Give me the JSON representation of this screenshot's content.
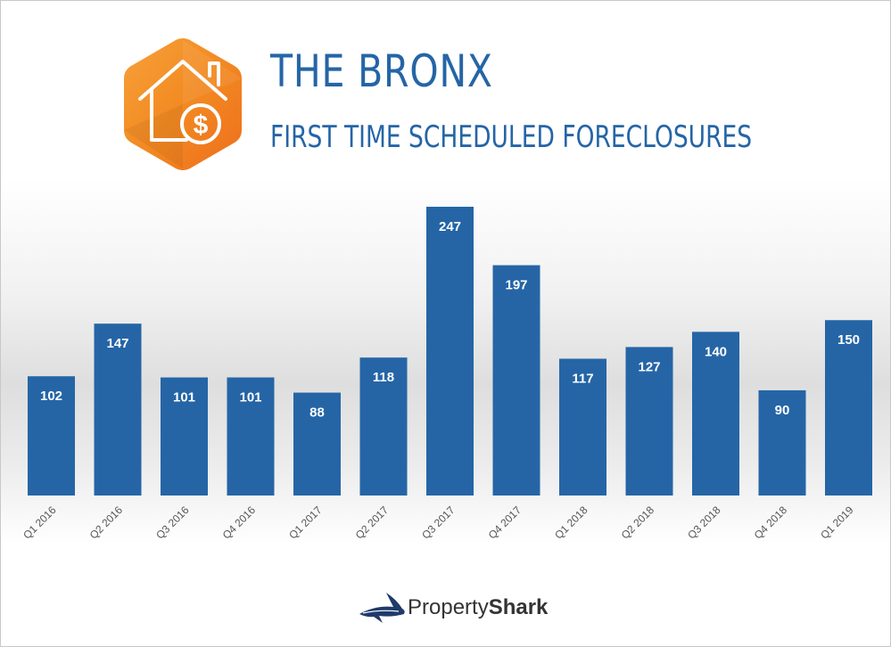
{
  "header": {
    "title": "THE BRONX",
    "subtitle": "FIRST TIME SCHEDULED FORECLOSURES"
  },
  "logo": {
    "icon": "house-dollar-icon",
    "color": "#f08a24"
  },
  "brand": {
    "light": "Property",
    "bold": "Shark",
    "icon": "shark-icon"
  },
  "colors": {
    "bar": "#2565a6",
    "title": "#2565a6",
    "bar_label": "#ffffff"
  },
  "chart_data": {
    "type": "bar",
    "categories": [
      "Q1 2016",
      "Q2 2016",
      "Q3 2016",
      "Q4 2016",
      "Q1 2017",
      "Q2 2017",
      "Q3 2017",
      "Q4 2017",
      "Q1 2018",
      "Q2 2018",
      "Q3 2018",
      "Q4 2018",
      "Q1 2019"
    ],
    "values": [
      102,
      147,
      101,
      101,
      88,
      118,
      247,
      197,
      117,
      127,
      140,
      90,
      150
    ],
    "title": "THE BRONX",
    "subtitle": "FIRST TIME SCHEDULED FORECLOSURES",
    "xlabel": "",
    "ylabel": "",
    "ylim": [
      0,
      250
    ],
    "grid": false,
    "legend": "none",
    "data_labels": true
  }
}
